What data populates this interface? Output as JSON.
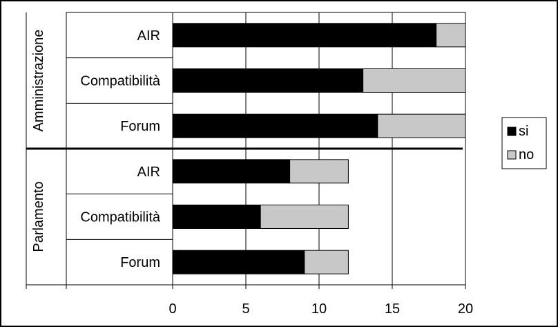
{
  "chart_data": {
    "type": "bar",
    "orientation": "horizontal",
    "stacked": true,
    "groups": [
      {
        "name": "Amministrazione",
        "categories": [
          "AIR",
          "Compatibilità",
          "Forum"
        ],
        "series": [
          {
            "name": "si",
            "values": [
              18,
              13,
              14
            ]
          },
          {
            "name": "no",
            "values": [
              2,
              7,
              6
            ]
          }
        ]
      },
      {
        "name": "Parlamento",
        "categories": [
          "AIR",
          "Compatibilità",
          "Forum"
        ],
        "series": [
          {
            "name": "si",
            "values": [
              8,
              6,
              9
            ]
          },
          {
            "name": "no",
            "values": [
              4,
              6,
              3
            ]
          }
        ]
      }
    ],
    "xlim": [
      0,
      20
    ],
    "xticks": [
      "0",
      "5",
      "10",
      "15",
      "20"
    ],
    "grid": "vertical",
    "legend": {
      "placement": "right",
      "entries": [
        "si",
        "no"
      ]
    },
    "colors": {
      "si": "#000000",
      "no": "#c8c8c8"
    }
  }
}
